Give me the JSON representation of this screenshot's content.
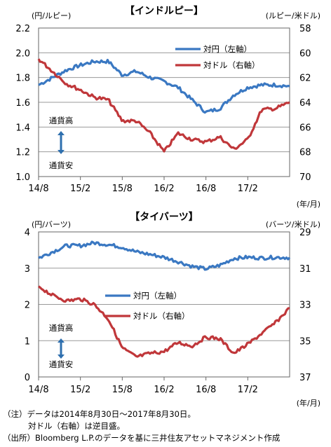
{
  "chart_data": [
    {
      "type": "line",
      "title": "【インドルピー】",
      "y_left_unit": "(円/ルピー)",
      "y_right_unit": "(ルピー/米ドル)",
      "x_unit": "(年/月)",
      "categories": [
        "14/8",
        "14/10",
        "14/12",
        "15/2",
        "15/4",
        "15/6",
        "15/8",
        "15/10",
        "15/12",
        "16/2",
        "16/4",
        "16/6",
        "16/8",
        "16/10",
        "16/12",
        "17/2",
        "17/4",
        "17/6",
        "17/8"
      ],
      "x_tick_labels": [
        "14/8",
        "15/2",
        "15/8",
        "16/2",
        "16/8",
        "17/2"
      ],
      "y_left_ticks": [
        "1.0",
        "1.2",
        "1.4",
        "1.6",
        "1.8",
        "2.0",
        "2.2"
      ],
      "y_right_ticks": [
        "58",
        "60",
        "62",
        "64",
        "66",
        "68",
        "70"
      ],
      "ylim_left": [
        1.0,
        2.2
      ],
      "ylim_right": [
        58,
        70
      ],
      "right_axis_inverted": true,
      "grid": "horizontal",
      "legend_position": "top-right",
      "series": [
        {
          "name": "対円（左軸）",
          "axis": "left",
          "color": "#3a78c2",
          "values": [
            1.74,
            1.8,
            1.86,
            1.9,
            1.93,
            1.93,
            1.82,
            1.85,
            1.8,
            1.77,
            1.72,
            1.62,
            1.52,
            1.55,
            1.66,
            1.72,
            1.74,
            1.74,
            1.73
          ]
        },
        {
          "name": "対ドル（右軸）",
          "axis": "right",
          "color": "#c0373a",
          "values": [
            60.5,
            61.5,
            62.5,
            63.0,
            63.6,
            63.8,
            65.5,
            65.5,
            66.5,
            68.0,
            66.5,
            67.0,
            67.2,
            66.8,
            67.8,
            67.0,
            64.6,
            64.5,
            64.0
          ]
        }
      ],
      "annotations": {
        "up": "通貨高",
        "down": "通貨安"
      }
    },
    {
      "type": "line",
      "title": "【タイバーツ】",
      "y_left_unit": "(円/バーツ)",
      "y_right_unit": "(バーツ/米ドル)",
      "x_unit": "(年/月)",
      "categories": [
        "14/8",
        "14/10",
        "14/12",
        "15/2",
        "15/4",
        "15/6",
        "15/8",
        "15/10",
        "15/12",
        "16/2",
        "16/4",
        "16/6",
        "16/8",
        "16/10",
        "16/12",
        "17/2",
        "17/4",
        "17/6",
        "17/8"
      ],
      "x_tick_labels": [
        "14/8",
        "15/2",
        "15/8",
        "16/2",
        "16/8",
        "17/2"
      ],
      "y_left_ticks": [
        "0",
        "1",
        "2",
        "3",
        "4"
      ],
      "y_right_ticks": [
        "29",
        "31",
        "33",
        "35",
        "37"
      ],
      "ylim_left": [
        0,
        4
      ],
      "ylim_right": [
        29,
        37
      ],
      "right_axis_inverted": true,
      "grid": "horizontal",
      "legend_position": "center-right",
      "series": [
        {
          "name": "対円（左軸）",
          "axis": "left",
          "color": "#3a78c2",
          "values": [
            3.28,
            3.45,
            3.62,
            3.62,
            3.7,
            3.65,
            3.58,
            3.45,
            3.38,
            3.3,
            3.18,
            3.05,
            2.98,
            3.08,
            3.27,
            3.3,
            3.28,
            3.3,
            3.29
          ]
        },
        {
          "name": "対ドル（右軸）",
          "axis": "right",
          "color": "#c0373a",
          "values": [
            32.0,
            32.5,
            32.8,
            32.7,
            33.0,
            33.8,
            35.4,
            35.9,
            35.7,
            35.6,
            35.1,
            35.3,
            34.8,
            34.9,
            35.7,
            35.2,
            34.6,
            34.0,
            33.2
          ]
        }
      ],
      "annotations": {
        "up": "通貨高",
        "down": "通貨安"
      }
    }
  ],
  "notes": {
    "line1": "（注）データは2014年8月30日～2017年8月30日。",
    "line2": "対ドル（右軸）は逆目盛。",
    "line3": "（出所）Bloomberg L.P.のデータを基に三井住友アセットマネジメント作成"
  }
}
